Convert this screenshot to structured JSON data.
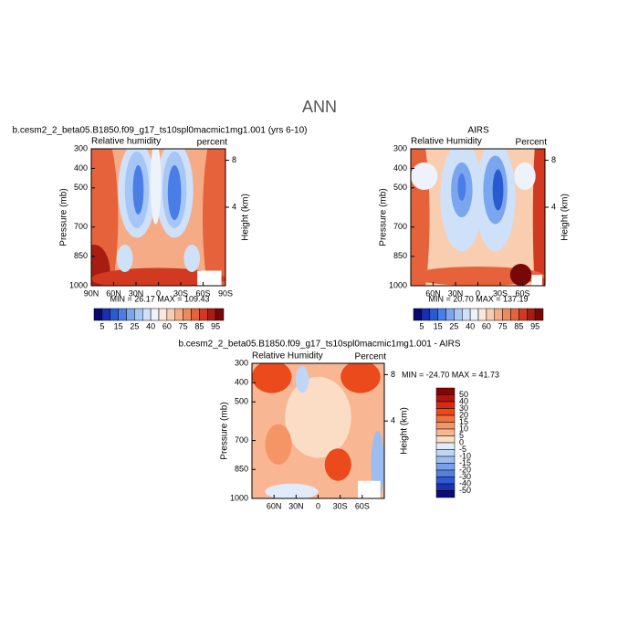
{
  "title": "ANN",
  "panels": [
    {
      "title": "b.cesm2_2_beta05.B1850.f09_g17_ts10spl0macmic1mg1.001 (yrs 6-10)",
      "left_label": "Relative humidity",
      "right_label": "percent",
      "ylabel": "Pressure (mb)",
      "y2label": "Height (km)",
      "ylim": [
        300,
        1000
      ],
      "yticks": [
        300,
        400,
        500,
        700,
        850,
        1000
      ],
      "y2ticks": [
        8,
        4
      ],
      "xlim": [
        90,
        -90
      ],
      "xticks": [
        {
          "value": 90,
          "label": "90N"
        },
        {
          "value": 60,
          "label": "60N"
        },
        {
          "value": 30,
          "label": "30N"
        },
        0,
        {
          "value": -30,
          "label": "30S"
        },
        {
          "value": -60,
          "label": "60S"
        },
        {
          "value": -90,
          "label": "90S"
        }
      ],
      "stats": "MIN =   26.17   MAX =  109.43"
    },
    {
      "title": "AIRS",
      "left_label": "Relative Humidity",
      "right_label": "Percent",
      "ylabel": "Pressure (mb)",
      "y2label": "Height (km)",
      "ylim": [
        300,
        1000
      ],
      "yticks": [
        300,
        400,
        500,
        700,
        850,
        1000
      ],
      "y2ticks": [
        8,
        4
      ],
      "xlim": [
        90,
        -90
      ],
      "xticks": [
        {
          "value": 60,
          "label": "60N"
        },
        {
          "value": 30,
          "label": "30N"
        },
        0,
        {
          "value": -30,
          "label": "30S"
        },
        {
          "value": -60,
          "label": "60S"
        }
      ],
      "stats": "MIN =   20.70   MAX =  137.19"
    },
    {
      "title": "b.cesm2_2_beta05.B1850.f09_g17_ts10spl0macmic1mg1.001 - AIRS",
      "left_label": "Relative Humidity",
      "right_label": "Percent",
      "ylabel": "Pressure (mb)",
      "y2label": "Height (km)",
      "ylim": [
        300,
        1000
      ],
      "yticks": [
        300,
        400,
        500,
        700,
        850,
        1000
      ],
      "y2ticks": [
        8,
        4
      ],
      "xlim": [
        90,
        -90
      ],
      "xticks": [
        {
          "value": 60,
          "label": "60N"
        },
        {
          "value": 30,
          "label": "30N"
        },
        0,
        {
          "value": -30,
          "label": "30S"
        },
        {
          "value": -60,
          "label": "60S"
        }
      ],
      "stats": "MIN = -24.70   MAX =   41.73"
    }
  ],
  "colorbar": {
    "levels": [
      5,
      15,
      25,
      40,
      60,
      75,
      85,
      95
    ],
    "colors": [
      "#0a0a6e",
      "#1a2fb0",
      "#2a5ad0",
      "#4a7ee6",
      "#7aa6f0",
      "#a6c6f5",
      "#cfe0f9",
      "#eef3fb",
      "#fbe8da",
      "#f9cdb0",
      "#f5ab86",
      "#f0885e",
      "#e6623b",
      "#d13a20",
      "#a81c12",
      "#780808"
    ]
  },
  "diff_colorbar": {
    "levels": [
      50,
      40,
      30,
      20,
      15,
      10,
      5,
      0,
      -5,
      -10,
      -15,
      -20,
      -30,
      -40,
      -50
    ],
    "colors": [
      "#8b0000",
      "#b3130d",
      "#d62b12",
      "#ea4a1c",
      "#f2713c",
      "#f59566",
      "#f8b692",
      "#fbdcc4",
      "#e1ebfa",
      "#c0d6f6",
      "#9dbdf0",
      "#7aa0ea",
      "#5580e0",
      "#2f5ad4",
      "#1a34b0",
      "#0a0a78"
    ]
  }
}
